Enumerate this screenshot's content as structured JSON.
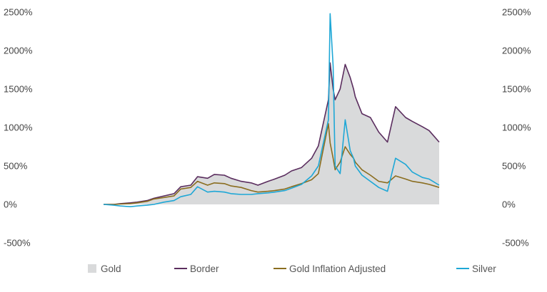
{
  "chart_data": {
    "type": "line",
    "title": "",
    "xlabel": "",
    "ylabel": "",
    "ylim": [
      -500,
      2500
    ],
    "yticks": [
      "2500%",
      "2000%",
      "1500%",
      "1000%",
      "500%",
      "0%",
      "-500%"
    ],
    "ytick_values": [
      2500,
      2000,
      1500,
      1000,
      500,
      0,
      -500
    ],
    "y_axes": "left-and-right",
    "grid": false,
    "legend_position": "bottom",
    "x": [
      0,
      3,
      5,
      8,
      10,
      13,
      15,
      18,
      21,
      23,
      26,
      28,
      31,
      33,
      36,
      38,
      41,
      44,
      46,
      49,
      51,
      54,
      56,
      59,
      62,
      64,
      67,
      67.5,
      68.4,
      69,
      70.5,
      72,
      73.5,
      74.5,
      75,
      77,
      79.5,
      82,
      84.6,
      87,
      90,
      92,
      95,
      97,
      100
    ],
    "xlim": [
      0,
      100
    ],
    "series": [
      {
        "name": "Gold",
        "kind": "area",
        "color": "#d9dadb",
        "values": [
          0,
          0,
          10,
          20,
          30,
          50,
          80,
          110,
          140,
          230,
          250,
          360,
          340,
          390,
          380,
          340,
          300,
          280,
          250,
          300,
          330,
          380,
          435,
          480,
          600,
          760,
          1360,
          1840,
          1500,
          1360,
          1500,
          1820,
          1650,
          1500,
          1400,
          1180,
          1130,
          940,
          810,
          1270,
          1130,
          1080,
          1010,
          960,
          810
        ]
      },
      {
        "name": "Border",
        "kind": "line",
        "color": "#5a2d5e",
        "values": [
          0,
          0,
          10,
          20,
          30,
          50,
          80,
          110,
          140,
          230,
          250,
          360,
          340,
          390,
          380,
          340,
          300,
          280,
          250,
          300,
          330,
          380,
          435,
          480,
          600,
          760,
          1360,
          1840,
          1500,
          1360,
          1500,
          1820,
          1650,
          1500,
          1400,
          1180,
          1130,
          940,
          810,
          1270,
          1130,
          1080,
          1010,
          960,
          810
        ]
      },
      {
        "name": "Gold Inflation Adjusted",
        "kind": "line",
        "color": "#8a6d1f",
        "values": [
          0,
          0,
          5,
          10,
          20,
          40,
          70,
          90,
          110,
          200,
          220,
          300,
          250,
          280,
          270,
          240,
          220,
          180,
          160,
          170,
          180,
          200,
          230,
          270,
          320,
          400,
          1050,
          800,
          600,
          450,
          550,
          750,
          650,
          600,
          550,
          450,
          380,
          300,
          280,
          370,
          330,
          300,
          280,
          260,
          220
        ]
      },
      {
        "name": "Silver",
        "kind": "line",
        "color": "#1ea7d6",
        "values": [
          0,
          -10,
          -20,
          -30,
          -20,
          -10,
          0,
          30,
          50,
          100,
          130,
          230,
          160,
          170,
          160,
          140,
          130,
          130,
          140,
          150,
          160,
          180,
          210,
          260,
          370,
          500,
          1100,
          2480,
          1800,
          500,
          400,
          1100,
          700,
          600,
          500,
          380,
          300,
          220,
          170,
          600,
          520,
          420,
          350,
          330,
          250
        ]
      }
    ]
  }
}
